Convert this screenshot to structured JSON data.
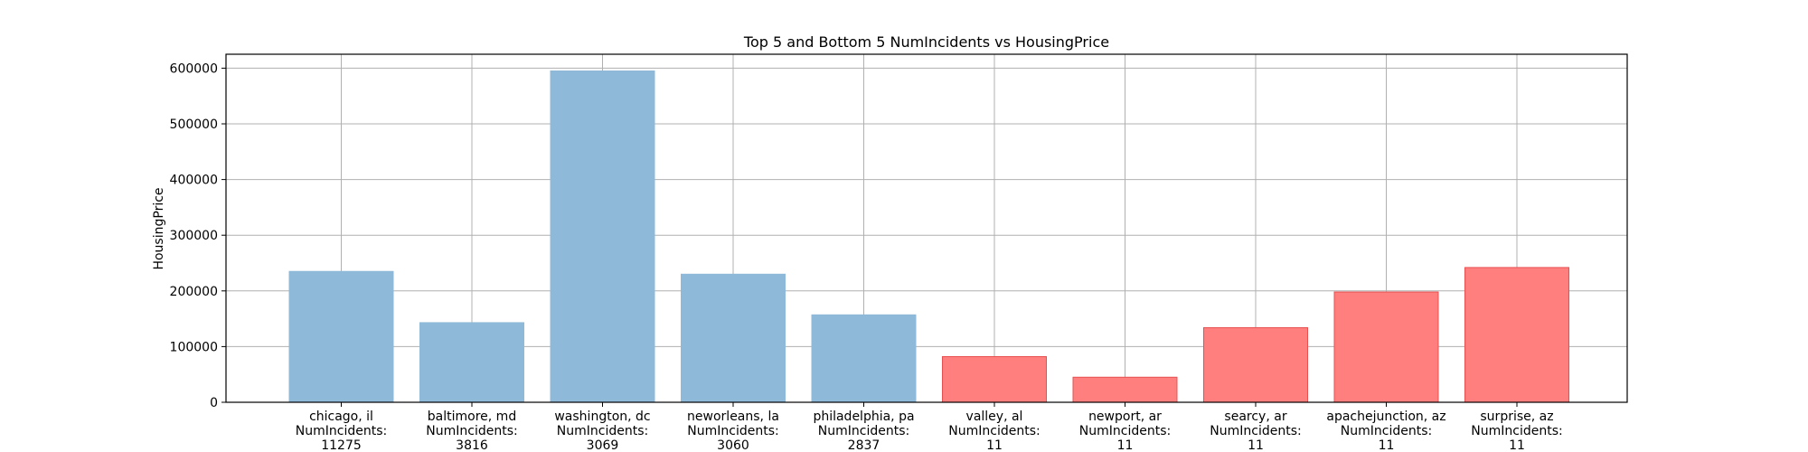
{
  "chart_data": {
    "type": "bar",
    "title": "Top 5 and Bottom 5 NumIncidents vs HousingPrice",
    "xlabel": "",
    "ylabel": "HousingPrice",
    "ylim": [
      0,
      625000
    ],
    "yticks": [
      0,
      100000,
      200000,
      300000,
      400000,
      500000,
      600000
    ],
    "grid": true,
    "categories": [
      {
        "city": "chicago, il",
        "label": "NumIncidents:",
        "incidents": "11275"
      },
      {
        "city": "baltimore, md",
        "label": "NumIncidents:",
        "incidents": "3816"
      },
      {
        "city": "washington, dc",
        "label": "NumIncidents:",
        "incidents": "3069"
      },
      {
        "city": "neworleans, la",
        "label": "NumIncidents:",
        "incidents": "3060"
      },
      {
        "city": "philadelphia, pa",
        "label": "NumIncidents:",
        "incidents": "2837"
      },
      {
        "city": "valley, al",
        "label": "NumIncidents:",
        "incidents": "11"
      },
      {
        "city": "newport, ar",
        "label": "NumIncidents:",
        "incidents": "11"
      },
      {
        "city": "searcy, ar",
        "label": "NumIncidents:",
        "incidents": "11"
      },
      {
        "city": "apachejunction, az",
        "label": "NumIncidents:",
        "incidents": "11"
      },
      {
        "city": "surprise, az",
        "label": "NumIncidents:",
        "incidents": "11"
      }
    ],
    "values": [
      235000,
      143000,
      595000,
      230000,
      157000,
      82000,
      45000,
      134000,
      198000,
      242000
    ],
    "bar_colors": [
      "#8fb9d8",
      "#8fb9d8",
      "#8fb9d8",
      "#8fb9d8",
      "#8fb9d8",
      "#ff7f7f",
      "#ff7f7f",
      "#ff7f7f",
      "#ff7f7f",
      "#ff7f7f"
    ],
    "bar_edge_colors": [
      "#8fb9d8",
      "#8fb9d8",
      "#8fb9d8",
      "#8fb9d8",
      "#8fb9d8",
      "#e85050",
      "#e85050",
      "#e85050",
      "#e85050",
      "#e85050"
    ]
  }
}
